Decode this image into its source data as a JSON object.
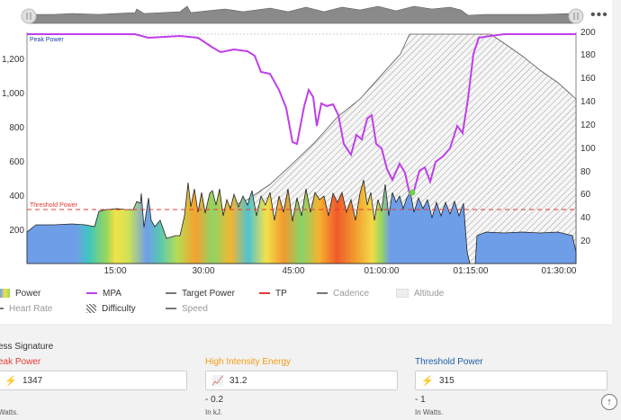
{
  "chart": {
    "peak_power_label": "Peak Power",
    "threshold_label": "Threshold Power",
    "left_ticks": [
      "200",
      "400",
      "600",
      "800",
      "1,000",
      "1,200"
    ],
    "right_ticks": [
      "20",
      "40",
      "60",
      "80",
      "100",
      "120",
      "140",
      "160",
      "180",
      "200"
    ],
    "x_ticks": [
      "15:00",
      "30:00",
      "45:00",
      "01:00:00",
      "01:15:00",
      "01:30:00"
    ],
    "colors": {
      "mpa": "#bf3fe8",
      "threshold": "#e53935",
      "power_blue": "#6f9ee8"
    }
  },
  "legend": {
    "power": "Power",
    "mpa": "MPA",
    "target_power": "Target Power",
    "tp": "TP",
    "cadence": "Cadence",
    "altitude": "Altitude",
    "heart_rate": "Heart Rate",
    "difficulty": "Difficulty",
    "speed": "Speed"
  },
  "signature": {
    "title": "ess Signature",
    "peak": {
      "label": "eak Power",
      "value": "1347",
      "delta": "",
      "unit": "Watts.",
      "color": "#e53935"
    },
    "hie": {
      "label": "High Intensity Energy",
      "value": "31.2",
      "delta": "- 0.2",
      "unit": "In kJ.",
      "color": "#f39c12"
    },
    "threshold": {
      "label": "Threshold Power",
      "value": "315",
      "delta": "- 1",
      "unit": "In Watts.",
      "color": "#1f5fa8"
    }
  },
  "icons": {
    "more": "more-icon",
    "scroll_top": "arrow-up-icon",
    "bolt": "bolt-icon",
    "trend": "trend-icon"
  }
}
